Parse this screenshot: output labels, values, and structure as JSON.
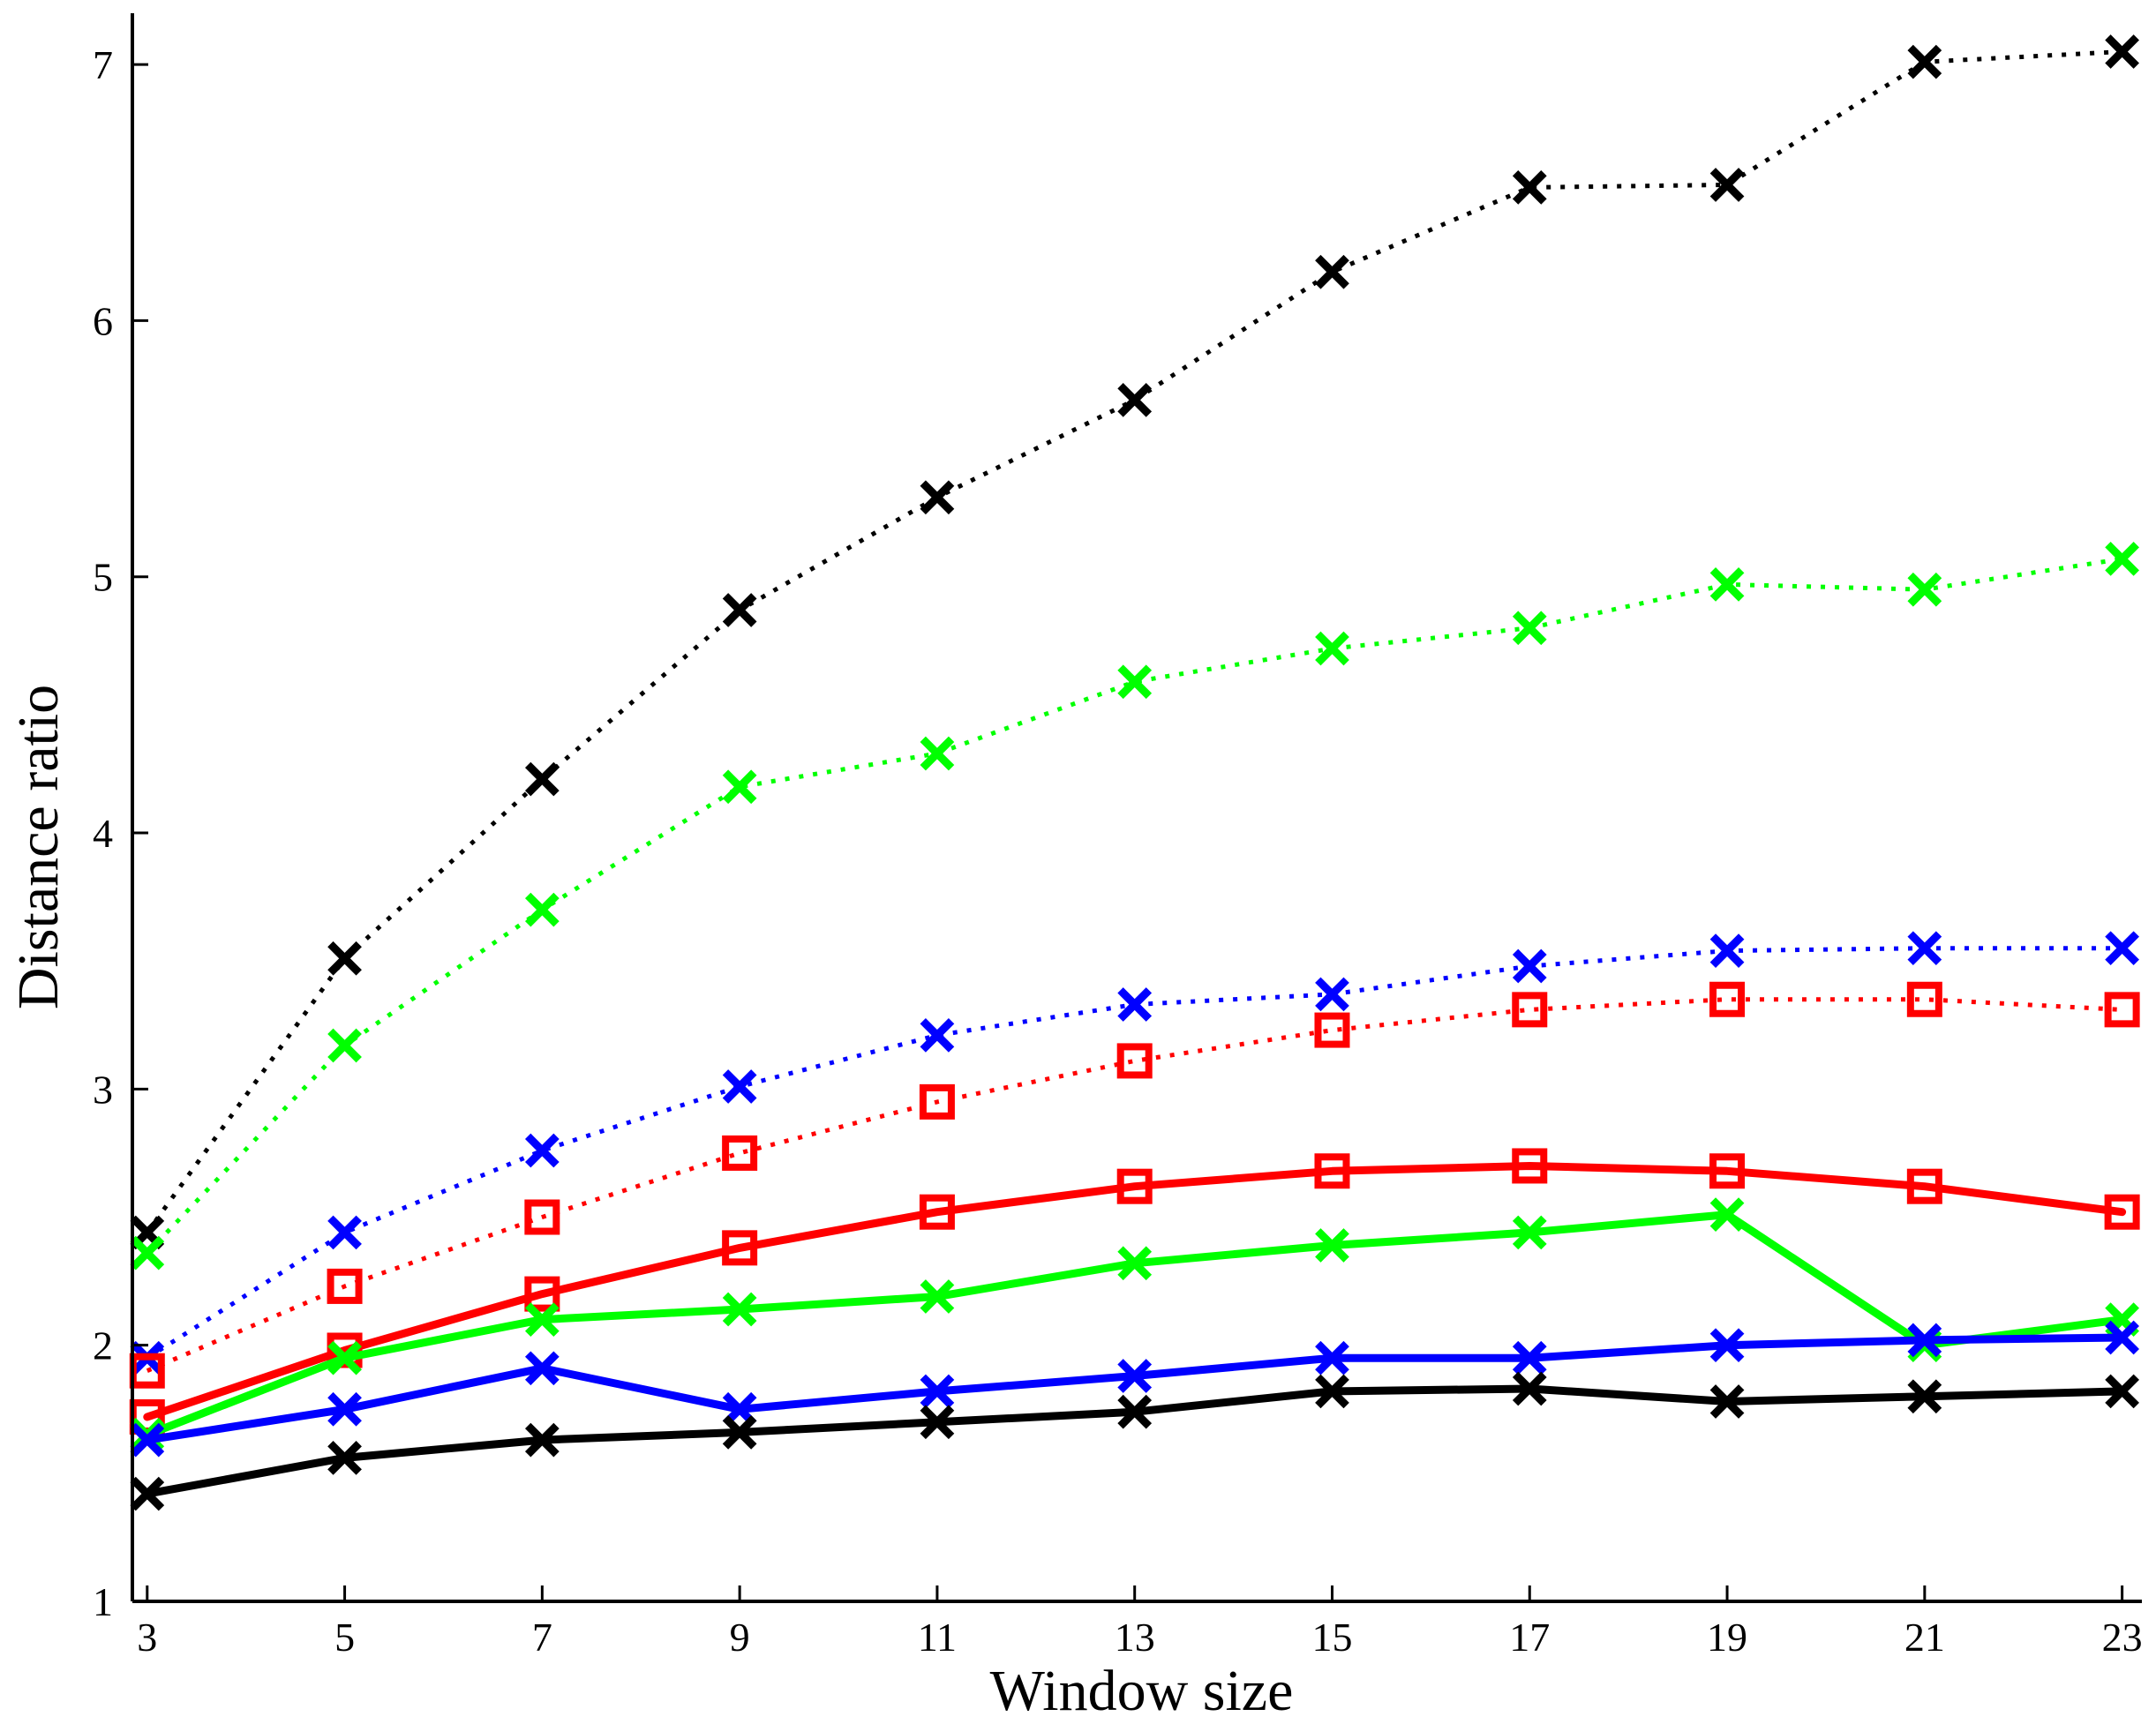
{
  "chart_data": {
    "type": "line",
    "title": "",
    "xlabel": "Window size",
    "ylabel": "Distance ratio",
    "x": [
      3,
      5,
      7,
      9,
      11,
      13,
      15,
      17,
      19,
      21,
      23
    ],
    "xlim": [
      2.85,
      23.2
    ],
    "ylim": [
      1,
      7.2
    ],
    "xticks": [
      3,
      5,
      7,
      9,
      11,
      13,
      15,
      17,
      19,
      21,
      23
    ],
    "yticks": [
      1,
      2,
      3,
      4,
      5,
      6,
      7
    ],
    "grid": false,
    "legend": null,
    "series": [
      {
        "name": "black dotted (x)",
        "color": "#000000",
        "style": "dotted",
        "marker": "x",
        "values": [
          2.44,
          3.51,
          4.21,
          4.87,
          5.31,
          5.69,
          6.19,
          6.52,
          6.53,
          7.01,
          7.05
        ]
      },
      {
        "name": "green dotted (x)",
        "color": "#00ff00",
        "style": "dotted",
        "marker": "x",
        "values": [
          2.36,
          3.17,
          3.7,
          4.18,
          4.31,
          4.59,
          4.72,
          4.8,
          4.97,
          4.95,
          5.07
        ]
      },
      {
        "name": "blue dotted (x)",
        "color": "#0000ff",
        "style": "dotted",
        "marker": "x",
        "values": [
          1.95,
          2.44,
          2.76,
          3.01,
          3.21,
          3.33,
          3.37,
          3.48,
          3.54,
          3.55,
          3.55
        ]
      },
      {
        "name": "red dotted (square)",
        "color": "#ff0000",
        "style": "dotted",
        "marker": "square",
        "values": [
          1.9,
          2.23,
          2.5,
          2.75,
          2.95,
          3.11,
          3.23,
          3.31,
          3.35,
          3.35,
          3.31
        ]
      },
      {
        "name": "red solid (square)",
        "color": "#ff0000",
        "style": "solid",
        "marker": "square",
        "values": [
          1.72,
          1.98,
          2.2,
          2.38,
          2.52,
          2.62,
          2.68,
          2.7,
          2.68,
          2.62,
          2.52
        ]
      },
      {
        "name": "green solid (x)",
        "color": "#00ff00",
        "style": "solid",
        "marker": "x",
        "values": [
          1.65,
          1.95,
          2.1,
          2.14,
          2.19,
          2.32,
          2.39,
          2.44,
          2.51,
          2.0,
          2.1
        ]
      },
      {
        "name": "blue solid (x)",
        "color": "#0000ff",
        "style": "solid",
        "marker": "x",
        "values": [
          1.63,
          1.75,
          1.91,
          1.75,
          1.82,
          1.88,
          1.95,
          1.95,
          2.0,
          2.02,
          2.03
        ]
      },
      {
        "name": "black solid (x)",
        "color": "#000000",
        "style": "solid",
        "marker": "x",
        "values": [
          1.42,
          1.56,
          1.63,
          1.66,
          1.7,
          1.74,
          1.82,
          1.83,
          1.78,
          1.8,
          1.82
        ]
      }
    ]
  }
}
